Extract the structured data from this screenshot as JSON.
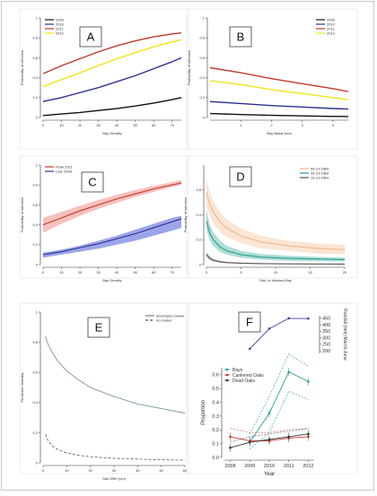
{
  "chart_data": [
    {
      "panel": "A",
      "type": "line",
      "xlabel": "Bay Density",
      "ylabel": "Probability of infection",
      "xlim": [
        0,
        75
      ],
      "ylim": [
        0,
        1.0
      ],
      "xticks": [
        0,
        10,
        20,
        30,
        40,
        50,
        60,
        70
      ],
      "yticks": [
        0.0,
        0.2,
        0.4,
        0.6,
        0.8,
        1.0
      ],
      "legend_position": "top-left",
      "series": [
        {
          "name": "2009",
          "color": "#111111",
          "x": [
            0,
            10,
            20,
            30,
            40,
            50,
            60,
            70,
            75
          ],
          "y": [
            0.02,
            0.035,
            0.05,
            0.07,
            0.09,
            0.115,
            0.145,
            0.18,
            0.2
          ]
        },
        {
          "name": "2010",
          "color": "#2e3192",
          "x": [
            0,
            10,
            20,
            30,
            40,
            50,
            60,
            70,
            75
          ],
          "y": [
            0.16,
            0.2,
            0.25,
            0.3,
            0.36,
            0.42,
            0.49,
            0.56,
            0.6
          ]
        },
        {
          "name": "2011",
          "color": "#c0392b",
          "x": [
            0,
            10,
            20,
            30,
            40,
            50,
            60,
            70,
            75
          ],
          "y": [
            0.44,
            0.52,
            0.59,
            0.66,
            0.72,
            0.77,
            0.81,
            0.84,
            0.85
          ]
        },
        {
          "name": "2012",
          "color": "#f2e41b",
          "x": [
            0,
            10,
            20,
            30,
            40,
            50,
            60,
            70,
            75
          ],
          "y": [
            0.31,
            0.38,
            0.45,
            0.52,
            0.59,
            0.65,
            0.71,
            0.76,
            0.78
          ]
        }
      ]
    },
    {
      "panel": "B",
      "type": "line",
      "xlabel": "Bay Basal Area",
      "ylabel": "Probability of infection",
      "xlim": [
        0,
        4.5
      ],
      "ylim": [
        0,
        1.0
      ],
      "xticks": [
        1,
        2,
        3,
        4
      ],
      "yticks": [
        0.0,
        0.2,
        0.4,
        0.6,
        0.8,
        1.0
      ],
      "legend_position": "top-right",
      "series": [
        {
          "name": "2009",
          "color": "#111111",
          "x": [
            0,
            1,
            2,
            3,
            4,
            4.5
          ],
          "y": [
            0.04,
            0.03,
            0.022,
            0.016,
            0.011,
            0.01
          ]
        },
        {
          "name": "2010",
          "color": "#2e3192",
          "x": [
            0,
            1,
            2,
            3,
            4,
            4.5
          ],
          "y": [
            0.16,
            0.14,
            0.12,
            0.105,
            0.09,
            0.085
          ]
        },
        {
          "name": "2011",
          "color": "#c0392b",
          "x": [
            0,
            1,
            2,
            3,
            4,
            4.5
          ],
          "y": [
            0.5,
            0.45,
            0.39,
            0.34,
            0.29,
            0.26
          ]
        },
        {
          "name": "2012",
          "color": "#f2e41b",
          "x": [
            0,
            1,
            2,
            3,
            4,
            4.5
          ],
          "y": [
            0.37,
            0.33,
            0.28,
            0.24,
            0.2,
            0.18
          ]
        }
      ]
    },
    {
      "panel": "C",
      "type": "area",
      "xlabel": "Bay Density",
      "ylabel": "Probability of infection",
      "xlim": [
        0,
        75
      ],
      "ylim": [
        0,
        1.0
      ],
      "xticks": [
        0,
        10,
        20,
        30,
        40,
        50,
        60,
        70
      ],
      "yticks": [
        0.0,
        0.2,
        0.4,
        0.6,
        0.8,
        1.0
      ],
      "legend_position": "top-left",
      "series": [
        {
          "name": "Peak 2011",
          "color": "#c0392b",
          "fill": "#f4b6b0",
          "x": [
            0,
            10,
            20,
            30,
            40,
            50,
            60,
            70,
            75
          ],
          "y": [
            0.4,
            0.47,
            0.54,
            0.6,
            0.66,
            0.71,
            0.76,
            0.8,
            0.82
          ],
          "lower": [
            0.32,
            0.41,
            0.49,
            0.56,
            0.62,
            0.68,
            0.73,
            0.78,
            0.8
          ],
          "upper": [
            0.47,
            0.53,
            0.59,
            0.65,
            0.7,
            0.75,
            0.79,
            0.83,
            0.85
          ]
        },
        {
          "name": "Late 2008",
          "color": "#2e3192",
          "fill": "#8c95e6",
          "x": [
            0,
            10,
            20,
            30,
            40,
            50,
            60,
            70,
            75
          ],
          "y": [
            0.1,
            0.13,
            0.17,
            0.21,
            0.26,
            0.31,
            0.37,
            0.43,
            0.46
          ],
          "lower": [
            0.07,
            0.1,
            0.13,
            0.16,
            0.2,
            0.24,
            0.29,
            0.34,
            0.37
          ],
          "upper": [
            0.12,
            0.15,
            0.19,
            0.24,
            0.29,
            0.35,
            0.41,
            0.47,
            0.49
          ]
        }
      ]
    },
    {
      "panel": "D",
      "type": "area",
      "xlabel": "Dist. to Infected Bay",
      "ylabel": "Probability of infection",
      "xlim": [
        0,
        20
      ],
      "ylim": [
        0,
        0.8
      ],
      "xticks": [
        0,
        5,
        10,
        15,
        20
      ],
      "yticks": [
        0.0,
        0.2,
        0.4,
        0.6
      ],
      "legend_position": "top-right",
      "series": [
        {
          "name": "56 cm DBH",
          "color": "#f0b58a",
          "fill": "#fae0cc",
          "x": [
            0,
            0.5,
            1,
            2,
            3,
            5,
            8,
            12,
            16,
            20
          ],
          "y": [
            0.58,
            0.48,
            0.42,
            0.34,
            0.29,
            0.23,
            0.18,
            0.15,
            0.13,
            0.12
          ],
          "lower": [
            0.48,
            0.39,
            0.33,
            0.26,
            0.22,
            0.17,
            0.13,
            0.11,
            0.09,
            0.08
          ],
          "upper": [
            0.68,
            0.58,
            0.51,
            0.42,
            0.36,
            0.29,
            0.23,
            0.19,
            0.17,
            0.16
          ]
        },
        {
          "name": "34 cm DBH",
          "color": "#2a9d8f",
          "fill": "#9fd8cf",
          "x": [
            0,
            0.5,
            1,
            2,
            3,
            5,
            8,
            12,
            16,
            20
          ],
          "y": [
            0.35,
            0.25,
            0.2,
            0.14,
            0.11,
            0.08,
            0.06,
            0.05,
            0.045,
            0.04
          ],
          "lower": [
            0.28,
            0.19,
            0.15,
            0.1,
            0.08,
            0.055,
            0.04,
            0.03,
            0.027,
            0.025
          ],
          "upper": [
            0.44,
            0.32,
            0.26,
            0.19,
            0.15,
            0.11,
            0.085,
            0.07,
            0.062,
            0.055
          ]
        },
        {
          "name": "16 cm DBH",
          "color": "#555555",
          "fill": "#bbbbbb",
          "x": [
            0,
            0.5,
            1,
            2,
            3,
            5,
            8,
            12,
            16,
            20
          ],
          "y": [
            0.08,
            0.05,
            0.035,
            0.022,
            0.016,
            0.011,
            0.008,
            0.006,
            0.005,
            0.004
          ],
          "lower": [
            0.06,
            0.035,
            0.025,
            0.015,
            0.011,
            0.007,
            0.005,
            0.004,
            0.003,
            0.003
          ],
          "upper": [
            0.1,
            0.065,
            0.045,
            0.03,
            0.022,
            0.015,
            0.011,
            0.008,
            0.007,
            0.006
          ]
        }
      ]
    },
    {
      "panel": "E",
      "type": "line",
      "xlabel": "Oak DBH (cm)",
      "ylabel": "Predicted Mortality",
      "xlim": [
        0,
        60
      ],
      "ylim": [
        0,
        1.0
      ],
      "xticks": [
        0,
        10,
        20,
        30,
        40,
        50,
        60
      ],
      "yticks": [
        0.0,
        0.2,
        0.4,
        0.6,
        0.8,
        1.0
      ],
      "legend_position": "top-right",
      "series": [
        {
          "name": "developed canker",
          "color": "#6b8e7a",
          "dash": "none",
          "x": [
            1,
            2,
            4,
            6,
            10,
            15,
            20,
            30,
            40,
            50,
            60
          ],
          "y": [
            0.84,
            0.79,
            0.73,
            0.68,
            0.61,
            0.55,
            0.5,
            0.44,
            0.39,
            0.36,
            0.33
          ]
        },
        {
          "name": "no canker",
          "color": "#555555",
          "dash": "3,2",
          "x": [
            1,
            2,
            4,
            6,
            10,
            15,
            20,
            30,
            40,
            50,
            60
          ],
          "y": [
            0.19,
            0.15,
            0.11,
            0.09,
            0.065,
            0.05,
            0.04,
            0.03,
            0.025,
            0.02,
            0.018
          ]
        }
      ]
    },
    {
      "panel": "F-top",
      "type": "line",
      "ylabel": "Rainfall (mm) March-June",
      "x": [
        2009,
        2010,
        2011,
        2012
      ],
      "xlim": [
        2007.7,
        2012.3
      ],
      "ylim": [
        180,
        470
      ],
      "yticks": [
        200,
        250,
        300,
        350,
        400,
        450
      ],
      "series": [
        {
          "name": "Rainfall",
          "color": "#3b3bb5",
          "y": [
            215,
            370,
            450,
            448
          ]
        }
      ]
    },
    {
      "panel": "F-bottom",
      "type": "line",
      "xlabel": "Year",
      "ylabel": "Proportion",
      "x": [
        2008,
        2009,
        2010,
        2011,
        2012
      ],
      "xlim": [
        2007.7,
        2012.3
      ],
      "ylim": [
        0,
        0.65
      ],
      "yticks": [
        0.0,
        0.1,
        0.2,
        0.3,
        0.4,
        0.5,
        0.6
      ],
      "xticks": [
        2008,
        2009,
        2010,
        2011,
        2012
      ],
      "legend_position": "top-left",
      "series": [
        {
          "name": "Bays",
          "color": "#2a9d8f",
          "x": [
            2009,
            2010,
            2011,
            2012
          ],
          "y": [
            0.11,
            0.32,
            0.62,
            0.55
          ],
          "ci_low": [
            0.06,
            0.18,
            0.48,
            0.42
          ],
          "ci_high": [
            0.17,
            0.44,
            0.75,
            0.66
          ]
        },
        {
          "name": "Cankered Oaks",
          "color": "#c0392b",
          "x": [
            2008,
            2009,
            2010,
            2011,
            2012
          ],
          "y": [
            0.15,
            0.12,
            0.12,
            0.14,
            0.15
          ]
        },
        {
          "name": "Dead Oaks",
          "color": "#333333",
          "x": [
            2008,
            2009,
            2010,
            2011,
            2012
          ],
          "y": [
            0.07,
            0.11,
            0.13,
            0.15,
            0.17
          ]
        }
      ]
    }
  ],
  "panel_labels": {
    "A": "A",
    "B": "B",
    "C": "C",
    "D": "D",
    "E": "E",
    "F": "F"
  }
}
